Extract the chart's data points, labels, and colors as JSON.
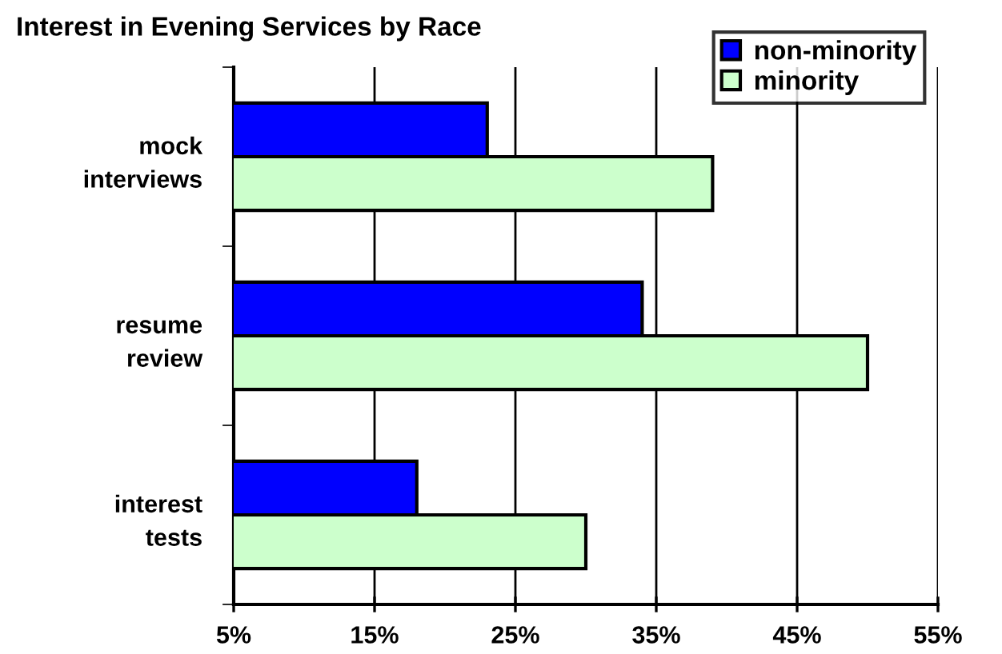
{
  "chart_data": {
    "type": "bar",
    "orientation": "horizontal",
    "title": "Interest in Evening Services by Race",
    "categories": [
      "mock\ninterviews",
      "resume\nreview",
      "interest\ntests"
    ],
    "series": [
      {
        "name": "non-minority",
        "color": "#0000ff",
        "values": [
          23,
          34,
          18
        ]
      },
      {
        "name": "minority",
        "color": "#ccffcc",
        "values": [
          39,
          50,
          30
        ]
      }
    ],
    "xlim": [
      5,
      55
    ],
    "xticks": [
      {
        "value": 5,
        "label": "5%"
      },
      {
        "value": 15,
        "label": "15%"
      },
      {
        "value": 25,
        "label": "25%"
      },
      {
        "value": 35,
        "label": "35%"
      },
      {
        "value": 45,
        "label": "45%"
      },
      {
        "value": 55,
        "label": "55%"
      }
    ],
    "grid": "x",
    "legend": "top right"
  }
}
